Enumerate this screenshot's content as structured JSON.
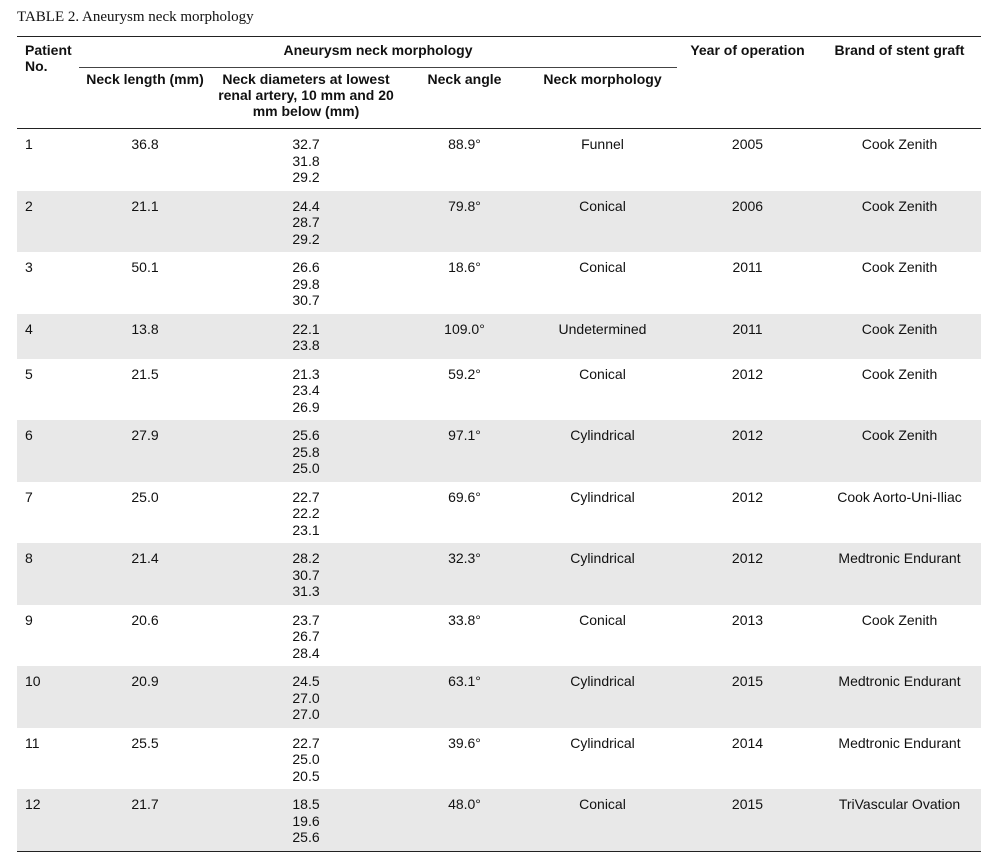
{
  "caption": "TABLE 2. Aneurysm neck morphology",
  "headers": {
    "patient": "Patient No.",
    "group": "Aneurysm neck morphology",
    "neck_length": "Neck length (mm)",
    "neck_diameters": "Neck diameters at lowest renal artery, 10 mm and 20 mm below (mm)",
    "neck_angle": "Neck angle",
    "neck_morphology": "Neck morphology",
    "year": "Year of operation",
    "brand": "Brand of stent graft"
  },
  "rows": [
    {
      "patient": "1",
      "length": "36.8",
      "d1": "32.7",
      "d2": "31.8",
      "d3": "29.2",
      "angle": "88.9°",
      "morphology": "Funnel",
      "year": "2005",
      "brand": "Cook Zenith"
    },
    {
      "patient": "2",
      "length": "21.1",
      "d1": "24.4",
      "d2": "28.7",
      "d3": "29.2",
      "angle": "79.8°",
      "morphology": "Conical",
      "year": "2006",
      "brand": "Cook Zenith"
    },
    {
      "patient": "3",
      "length": "50.1",
      "d1": "26.6",
      "d2": "29.8",
      "d3": "30.7",
      "angle": "18.6°",
      "morphology": "Conical",
      "year": "2011",
      "brand": "Cook Zenith"
    },
    {
      "patient": "4",
      "length": "13.8",
      "d1": "22.1",
      "d2": "23.8",
      "angle": "109.0°",
      "morphology": "Undetermined",
      "year": "2011",
      "brand": "Cook Zenith"
    },
    {
      "patient": "5",
      "length": "21.5",
      "d1": "21.3",
      "d2": "23.4",
      "d3": "26.9",
      "angle": "59.2°",
      "morphology": "Conical",
      "year": "2012",
      "brand": "Cook Zenith"
    },
    {
      "patient": "6",
      "length": "27.9",
      "d1": "25.6",
      "d2": "25.8",
      "d3": "25.0",
      "angle": "97.1°",
      "morphology": "Cylindrical",
      "year": "2012",
      "brand": "Cook Zenith"
    },
    {
      "patient": "7",
      "length": "25.0",
      "d1": "22.7",
      "d2": "22.2",
      "d3": "23.1",
      "angle": "69.6°",
      "morphology": "Cylindrical",
      "year": "2012",
      "brand": "Cook Aorto-Uni-Iliac"
    },
    {
      "patient": "8",
      "length": "21.4",
      "d1": "28.2",
      "d2": "30.7",
      "d3": "31.3",
      "angle": "32.3°",
      "morphology": "Cylindrical",
      "year": "2012",
      "brand": "Medtronic Endurant"
    },
    {
      "patient": "9",
      "length": "20.6",
      "d1": "23.7",
      "d2": "26.7",
      "d3": "28.4",
      "angle": "33.8°",
      "morphology": "Conical",
      "year": "2013",
      "brand": "Cook Zenith"
    },
    {
      "patient": "10",
      "length": "20.9",
      "d1": "24.5",
      "d2": "27.0",
      "d3": "27.0",
      "angle": "63.1°",
      "morphology": "Cylindrical",
      "year": "2015",
      "brand": "Medtronic Endurant"
    },
    {
      "patient": "11",
      "length": "25.5",
      "d1": "22.7",
      "d2": "25.0",
      "d3": "20.5",
      "angle": "39.6°",
      "morphology": "Cylindrical",
      "year": "2014",
      "brand": "Medtronic Endurant"
    },
    {
      "patient": "12",
      "length": "21.7",
      "d1": "18.5",
      "d2": "19.6",
      "d3": "25.6",
      "angle": "48.0°",
      "morphology": "Conical",
      "year": "2015",
      "brand": "TriVascular Ovation"
    }
  ]
}
